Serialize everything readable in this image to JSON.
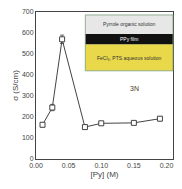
{
  "chart_data": {
    "type": "line",
    "x": [
      0.01,
      0.025,
      0.04,
      0.075,
      0.1,
      0.15,
      0.19
    ],
    "values": [
      163,
      245,
      570,
      152,
      170,
      172,
      192
    ],
    "yerr": [
      10,
      15,
      20,
      10,
      8,
      8,
      10
    ],
    "xlim": [
      0.0,
      0.21
    ],
    "ylim": [
      0,
      700
    ],
    "xticks": [
      {
        "value": 0,
        "label": "0.00"
      },
      0.05,
      {
        "value": 0.1,
        "label": "0.10"
      },
      0.15,
      {
        "value": 0.2,
        "label": "0.20"
      }
    ],
    "yticks": [
      0,
      100,
      200,
      300,
      400,
      500,
      600,
      700
    ],
    "xlabel": "[Py] (M)",
    "ylabel": "σ (S/cm)",
    "color": "#444444",
    "marker": "square",
    "line_style": "solid",
    "grid": false,
    "annotations": [
      "Pyrrole organic solution",
      "PPy film",
      "FeCl₃, PTS aqueous solution",
      "3N"
    ]
  }
}
